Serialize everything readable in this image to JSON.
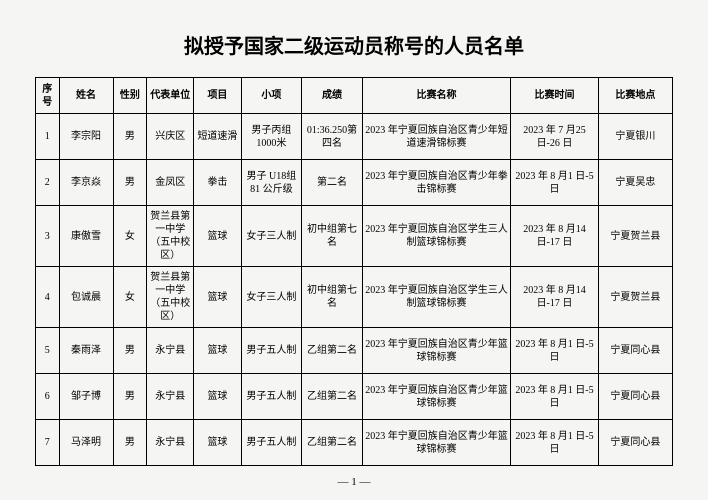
{
  "title": "拟授予国家二级运动员称号的人员名单",
  "headers": {
    "seq": "序号",
    "name": "姓名",
    "gender": "性别",
    "unit": "代表单位",
    "sport": "项目",
    "event": "小项",
    "result": "成绩",
    "competition": "比赛名称",
    "time": "比赛时间",
    "venue": "比赛地点"
  },
  "rows": [
    {
      "seq": "1",
      "name": "李宗阳",
      "gender": "男",
      "unit": "兴庆区",
      "sport": "短道速滑",
      "event": "男子丙组1000米",
      "result": "01:36.250第四名",
      "competition": "2023 年宁夏回族自治区青少年短道速滑锦标赛",
      "time": "2023 年 7 月25 日-26 日",
      "venue": "宁夏银川"
    },
    {
      "seq": "2",
      "name": "李京焱",
      "gender": "男",
      "unit": "金凤区",
      "sport": "拳击",
      "event": "男子 U18组 81 公斤级",
      "result": "第二名",
      "competition": "2023 年宁夏回族自治区青少年拳击锦标赛",
      "time": "2023 年 8 月1 日-5 日",
      "venue": "宁夏吴忠"
    },
    {
      "seq": "3",
      "name": "康傲雪",
      "gender": "女",
      "unit": "贺兰县第一中学（五中校区）",
      "sport": "篮球",
      "event": "女子三人制",
      "result": "初中组第七名",
      "competition": "2023 年宁夏回族自治区学生三人制篮球锦标赛",
      "time": "2023 年 8 月14 日-17 日",
      "venue": "宁夏贺兰县"
    },
    {
      "seq": "4",
      "name": "包诚晨",
      "gender": "女",
      "unit": "贺兰县第一中学（五中校区）",
      "sport": "篮球",
      "event": "女子三人制",
      "result": "初中组第七名",
      "competition": "2023 年宁夏回族自治区学生三人制篮球锦标赛",
      "time": "2023 年 8 月14 日-17 日",
      "venue": "宁夏贺兰县"
    },
    {
      "seq": "5",
      "name": "秦雨泽",
      "gender": "男",
      "unit": "永宁县",
      "sport": "篮球",
      "event": "男子五人制",
      "result": "乙组第二名",
      "competition": "2023 年宁夏回族自治区青少年篮球锦标赛",
      "time": "2023 年 8 月1 日-5 日",
      "venue": "宁夏同心县"
    },
    {
      "seq": "6",
      "name": "邹子博",
      "gender": "男",
      "unit": "永宁县",
      "sport": "篮球",
      "event": "男子五人制",
      "result": "乙组第二名",
      "competition": "2023 年宁夏回族自治区青少年篮球锦标赛",
      "time": "2023 年 8 月1 日-5 日",
      "venue": "宁夏同心县"
    },
    {
      "seq": "7",
      "name": "马泽明",
      "gender": "男",
      "unit": "永宁县",
      "sport": "篮球",
      "event": "男子五人制",
      "result": "乙组第二名",
      "competition": "2023 年宁夏回族自治区青少年篮球锦标赛",
      "time": "2023 年 8 月1 日-5 日",
      "venue": "宁夏同心县"
    }
  ],
  "pageNum": "— 1 —"
}
